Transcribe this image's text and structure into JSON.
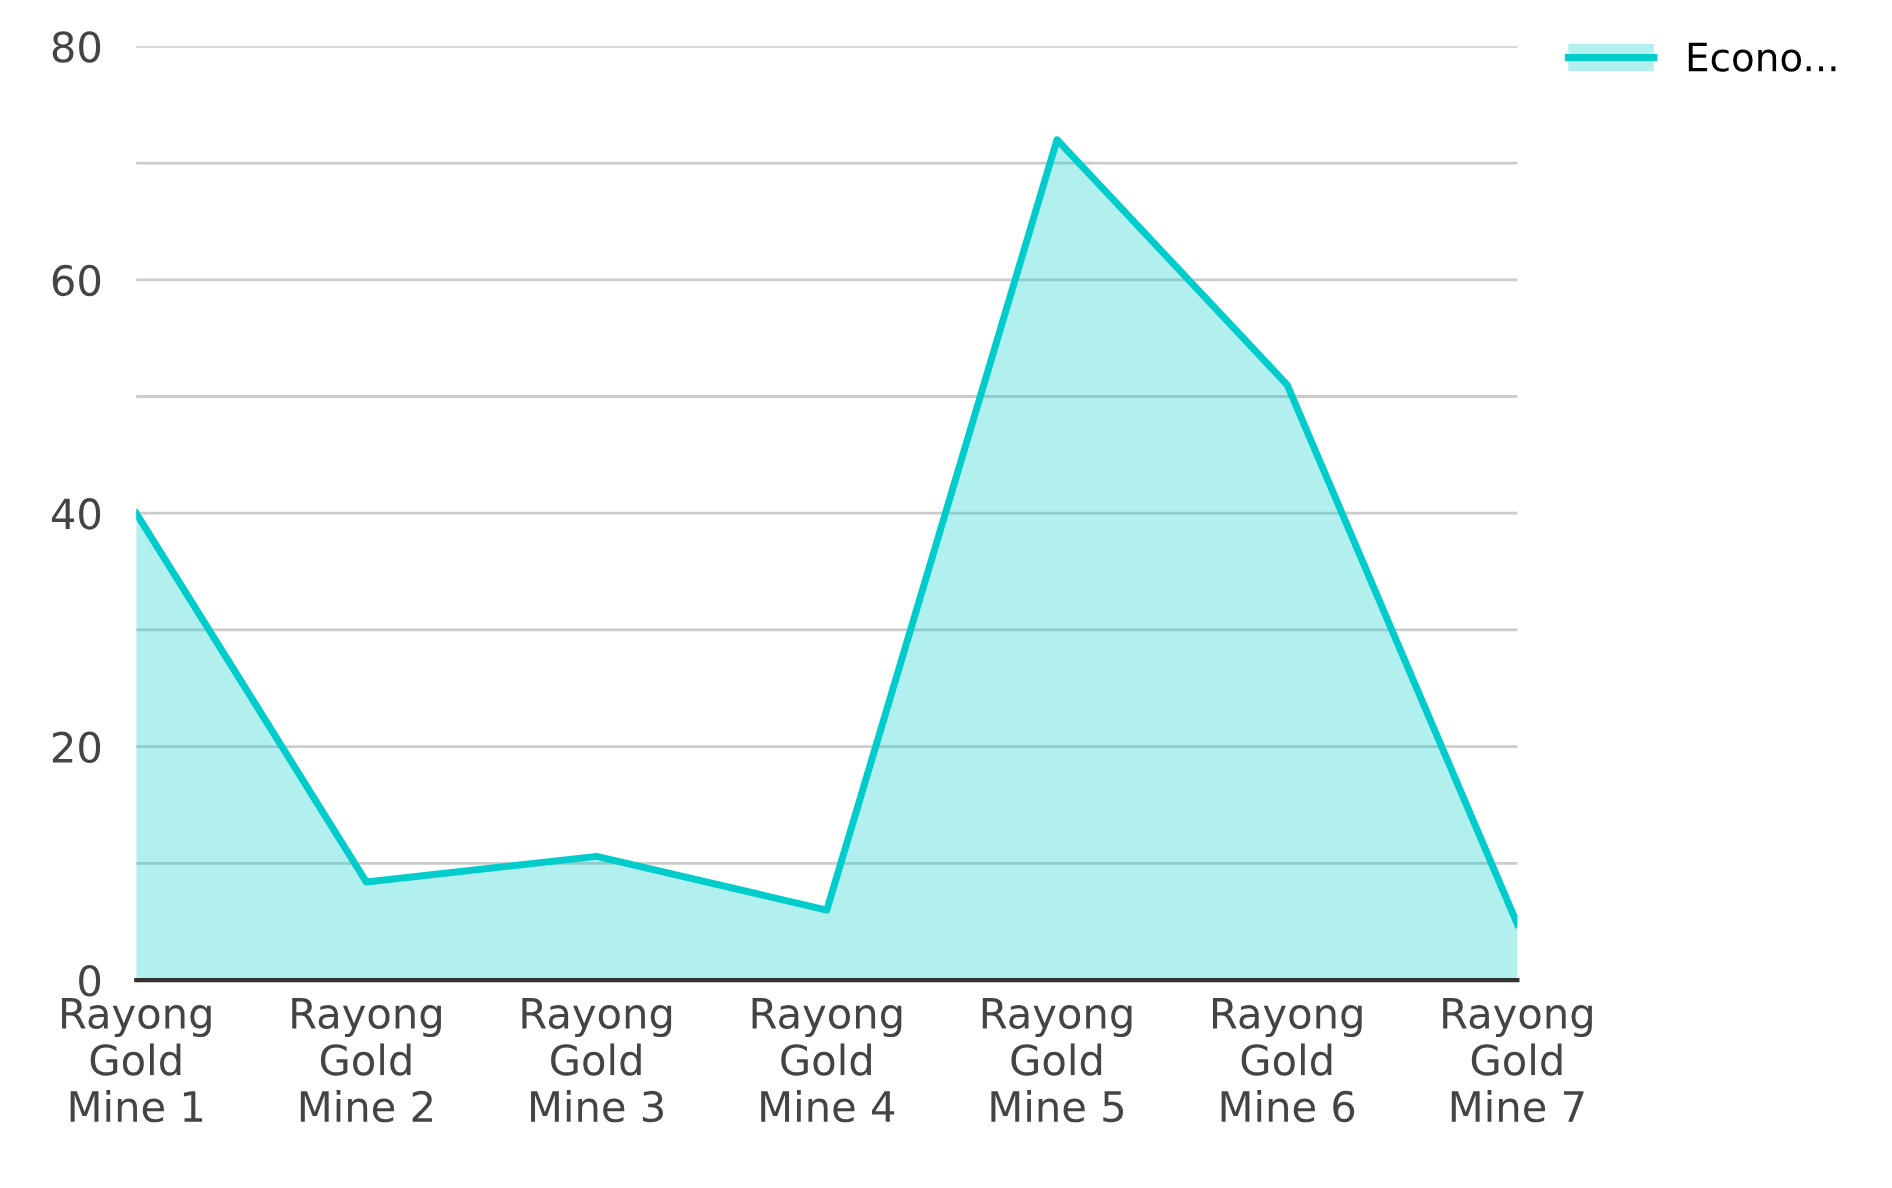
{
  "chart_data": {
    "type": "area",
    "categories": [
      "Rayong\nGold\nMine 1",
      "Rayong\nGold\nMine 2",
      "Rayong\nGold\nMine 3",
      "Rayong\nGold\nMine 4",
      "Rayong\nGold\nMine 5",
      "Rayong\nGold\nMine 6",
      "Rayong\nGold\nMine 7"
    ],
    "series": [
      {
        "name": "Econo...",
        "color": "#00cccc",
        "values": [
          40,
          8.4,
          10.6,
          6,
          72,
          51,
          4.8
        ]
      }
    ],
    "ylim": [
      0,
      80
    ],
    "yticks": [
      0,
      {
        "value": 10,
        "label": null
      },
      20,
      {
        "value": 30,
        "label": null
      },
      40,
      {
        "value": 50,
        "label": null
      },
      60,
      {
        "value": 70,
        "label": null
      },
      80
    ],
    "grid": "y",
    "legend": "top right",
    "marker": "none",
    "line_style": "solid"
  }
}
